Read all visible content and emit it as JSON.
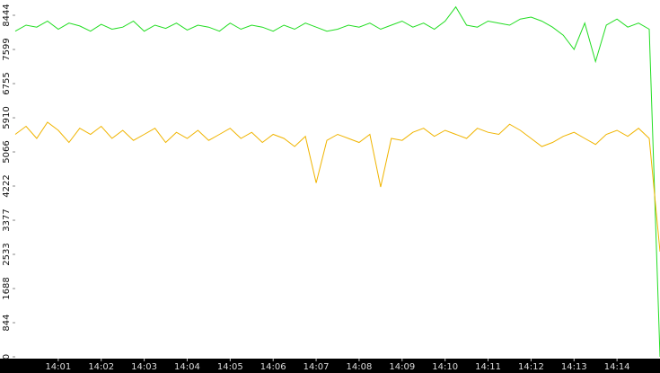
{
  "chart_data": {
    "type": "line",
    "x": [
      0,
      0.25,
      0.5,
      0.75,
      1,
      1.25,
      1.5,
      1.75,
      2,
      2.25,
      2.5,
      2.75,
      3,
      3.25,
      3.5,
      3.75,
      4,
      4.25,
      4.5,
      4.75,
      5,
      5.25,
      5.5,
      5.75,
      6,
      6.25,
      6.5,
      6.75,
      7,
      7.25,
      7.5,
      7.75,
      8,
      8.25,
      8.5,
      8.75,
      9,
      9.25,
      9.5,
      9.75,
      10,
      10.25,
      10.5,
      10.75,
      11,
      11.25,
      11.5,
      11.75,
      12,
      12.25,
      12.5,
      12.75,
      13,
      13.25,
      13.5,
      13.75,
      14,
      14.25,
      14.5,
      14.75,
      15
    ],
    "series": [
      {
        "color": "#22dd22",
        "values": [
          8050,
          8200,
          8150,
          8300,
          8100,
          8250,
          8180,
          8050,
          8220,
          8100,
          8150,
          8300,
          8050,
          8200,
          8120,
          8250,
          8080,
          8200,
          8150,
          8050,
          8250,
          8100,
          8200,
          8150,
          8050,
          8200,
          8100,
          8250,
          8150,
          8050,
          8100,
          8200,
          8150,
          8250,
          8100,
          8200,
          8300,
          8150,
          8250,
          8100,
          8300,
          8650,
          8200,
          8150,
          8300,
          8250,
          8200,
          8350,
          8400,
          8300,
          8150,
          7950,
          7600,
          8250,
          7300,
          8200,
          8350,
          8150,
          8250,
          8100,
          0
        ]
      },
      {
        "color": "#f0b400",
        "values": [
          5500,
          5700,
          5400,
          5800,
          5600,
          5300,
          5650,
          5500,
          5700,
          5400,
          5600,
          5350,
          5500,
          5650,
          5300,
          5550,
          5400,
          5600,
          5350,
          5500,
          5650,
          5400,
          5550,
          5300,
          5500,
          5400,
          5200,
          5450,
          4300,
          5350,
          5500,
          5400,
          5300,
          5500,
          4200,
          5400,
          5350,
          5550,
          5650,
          5450,
          5600,
          5500,
          5400,
          5650,
          5550,
          5500,
          5750,
          5600,
          5400,
          5200,
          5300,
          5450,
          5550,
          5400,
          5250,
          5500,
          5600,
          5450,
          5650,
          5400,
          2600
        ]
      }
    ],
    "xlim": [
      0,
      15
    ],
    "xticks": [
      {
        "value": 1,
        "label": "14:01"
      },
      {
        "value": 2,
        "label": "14:02"
      },
      {
        "value": 3,
        "label": "14:03"
      },
      {
        "value": 4,
        "label": "14:04"
      },
      {
        "value": 5,
        "label": "14:05"
      },
      {
        "value": 6,
        "label": "14:06"
      },
      {
        "value": 7,
        "label": "14:07"
      },
      {
        "value": 8,
        "label": "14:08"
      },
      {
        "value": 9,
        "label": "14:09"
      },
      {
        "value": 10,
        "label": "14:10"
      },
      {
        "value": 11,
        "label": "14:11"
      },
      {
        "value": 12,
        "label": "14:12"
      },
      {
        "value": 13,
        "label": "14:13"
      },
      {
        "value": 14,
        "label": "14:14"
      }
    ],
    "ylim": [
      0,
      8822
    ],
    "yticks": [
      0,
      844,
      1688,
      2533,
      3377,
      4222,
      5066,
      5910,
      6755,
      7599,
      8444
    ],
    "grid": false
  }
}
